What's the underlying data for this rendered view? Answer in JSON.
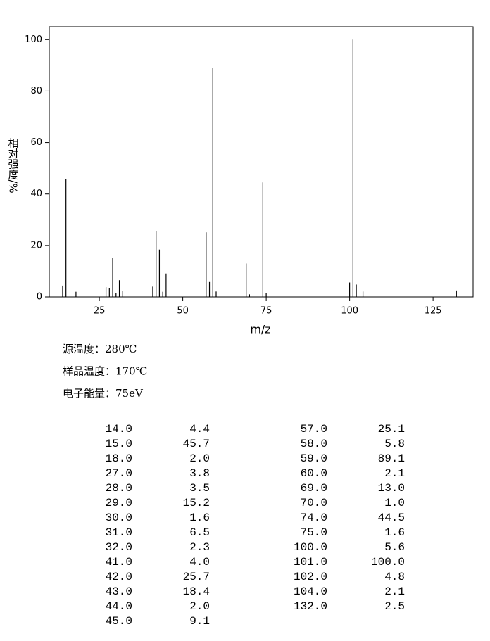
{
  "chart_data": {
    "type": "bar",
    "y_label": "相对强度/%",
    "x_label": "m/z",
    "conditions": [
      "源温度：280℃",
      "样品温度：170℃",
      "电子能量：75eV"
    ],
    "x": [
      14,
      15,
      18,
      27,
      28,
      29,
      30,
      31,
      32,
      41,
      42,
      43,
      44,
      45,
      57,
      58,
      59,
      60,
      69,
      70,
      74,
      75,
      100,
      101,
      102,
      104,
      132
    ],
    "x_labels": [
      "14.0",
      "15.0",
      "18.0",
      "27.0",
      "28.0",
      "29.0",
      "30.0",
      "31.0",
      "32.0",
      "41.0",
      "42.0",
      "43.0",
      "44.0",
      "45.0",
      "57.0",
      "58.0",
      "59.0",
      "60.0",
      "69.0",
      "70.0",
      "74.0",
      "75.0",
      "100.0",
      "101.0",
      "102.0",
      "104.0",
      "132.0"
    ],
    "values": [
      4.4,
      45.7,
      2.0,
      3.8,
      3.5,
      15.2,
      1.6,
      6.5,
      2.3,
      4.0,
      25.7,
      18.4,
      2.0,
      9.1,
      25.1,
      5.8,
      89.1,
      2.1,
      13.0,
      1.0,
      44.5,
      1.6,
      5.6,
      100.0,
      4.8,
      2.1,
      2.5
    ],
    "value_labels": [
      "4.4",
      "45.7",
      "2.0",
      "3.8",
      "3.5",
      "15.2",
      "1.6",
      "6.5",
      "2.3",
      "4.0",
      "25.7",
      "18.4",
      "2.0",
      "9.1",
      "25.1",
      "5.8",
      "89.1",
      "2.1",
      "13.0",
      "1.0",
      "44.5",
      "1.6",
      "5.6",
      "100.0",
      "4.8",
      "2.1",
      "2.5"
    ],
    "color": "#000000",
    "xlim": [
      10,
      137
    ],
    "xticks": [
      25,
      50,
      75,
      100,
      125
    ],
    "ylim": [
      0,
      105
    ],
    "yticks": [
      0,
      20,
      40,
      60,
      80,
      100
    ]
  }
}
